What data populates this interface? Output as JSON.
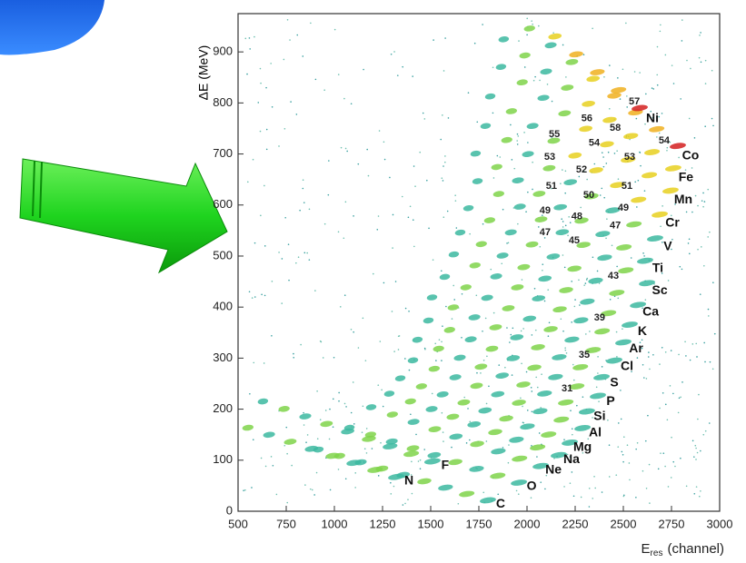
{
  "chart_data": {
    "type": "density",
    "xlabel": {
      "symbol": "E",
      "subscript": "res",
      "unit": "(channel)"
    },
    "ylabel": "ΔE (MeV)",
    "xlim": [
      500,
      3000
    ],
    "xticks": [
      500,
      750,
      1000,
      1250,
      1500,
      1750,
      2000,
      2250,
      2500,
      2750,
      3000
    ],
    "ylim": [
      0,
      975
    ],
    "yticks": [
      0,
      100,
      200,
      300,
      400,
      500,
      600,
      700,
      800,
      900
    ],
    "elements": [
      {
        "text": "N",
        "x": 1387,
        "y": 59
      },
      {
        "text": "F",
        "x": 1575,
        "y": 89
      },
      {
        "text": "C",
        "x": 1863,
        "y": 14
      },
      {
        "text": "O",
        "x": 2024,
        "y": 48
      },
      {
        "text": "Ne",
        "x": 2137,
        "y": 80
      },
      {
        "text": "Na",
        "x": 2231,
        "y": 101
      },
      {
        "text": "Mg",
        "x": 2288,
        "y": 125
      },
      {
        "text": "Al",
        "x": 2354,
        "y": 153
      },
      {
        "text": "Si",
        "x": 2377,
        "y": 185
      },
      {
        "text": "P",
        "x": 2434,
        "y": 215
      },
      {
        "text": "S",
        "x": 2453,
        "y": 251
      },
      {
        "text": "Cl",
        "x": 2519,
        "y": 283
      },
      {
        "text": "Ar",
        "x": 2566,
        "y": 318
      },
      {
        "text": "K",
        "x": 2599,
        "y": 352
      },
      {
        "text": "Ca",
        "x": 2642,
        "y": 390
      },
      {
        "text": "Sc",
        "x": 2689,
        "y": 432
      },
      {
        "text": "Ti",
        "x": 2679,
        "y": 475
      },
      {
        "text": "V",
        "x": 2731,
        "y": 518
      },
      {
        "text": "Cr",
        "x": 2755,
        "y": 564
      },
      {
        "text": "Mn",
        "x": 2811,
        "y": 610
      },
      {
        "text": "Fe",
        "x": 2825,
        "y": 653
      },
      {
        "text": "Co",
        "x": 2849,
        "y": 696
      },
      {
        "text": "Ni",
        "x": 2651,
        "y": 769
      }
    ],
    "masses": [
      {
        "text": "31",
        "x": 2208,
        "y": 240
      },
      {
        "text": "35",
        "x": 2297,
        "y": 306
      },
      {
        "text": "39",
        "x": 2377,
        "y": 379
      },
      {
        "text": "43",
        "x": 2448,
        "y": 461
      },
      {
        "text": "45",
        "x": 2245,
        "y": 530
      },
      {
        "text": "47",
        "x": 2094,
        "y": 546
      },
      {
        "text": "47",
        "x": 2458,
        "y": 559
      },
      {
        "text": "48",
        "x": 2259,
        "y": 577
      },
      {
        "text": "49",
        "x": 2094,
        "y": 589
      },
      {
        "text": "49",
        "x": 2500,
        "y": 594
      },
      {
        "text": "51",
        "x": 2127,
        "y": 637
      },
      {
        "text": "51",
        "x": 2519,
        "y": 637
      },
      {
        "text": "50",
        "x": 2321,
        "y": 619
      },
      {
        "text": "53",
        "x": 2118,
        "y": 694
      },
      {
        "text": "53",
        "x": 2533,
        "y": 694
      },
      {
        "text": "52",
        "x": 2283,
        "y": 669
      },
      {
        "text": "55",
        "x": 2142,
        "y": 738
      },
      {
        "text": "54",
        "x": 2349,
        "y": 721
      },
      {
        "text": "54",
        "x": 2712,
        "y": 726
      },
      {
        "text": "56",
        "x": 2311,
        "y": 769
      },
      {
        "text": "58",
        "x": 2458,
        "y": 751
      },
      {
        "text": "57",
        "x": 2557,
        "y": 802
      }
    ]
  }
}
